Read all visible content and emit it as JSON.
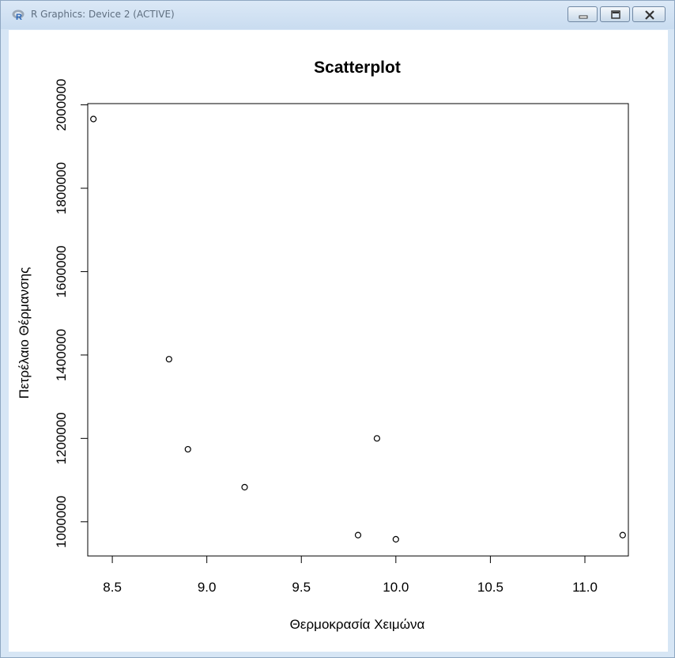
{
  "window": {
    "title": "R Graphics: Device 2 (ACTIVE)",
    "icon": "r-logo-icon",
    "controls": [
      "minimize-icon",
      "maximize-icon",
      "close-icon"
    ]
  },
  "colors": {
    "frame": "#d7e6f5",
    "plot_background": "#ffffff",
    "points": "#000000"
  },
  "chart_data": {
    "type": "scatter",
    "title": "Scatterplot",
    "xlabel": "Θερμοκρασία Χειμώνα",
    "ylabel": "Πετρέλαιο Θέρμανσης",
    "xlim": [
      8.37,
      11.23
    ],
    "ylim": [
      918000,
      2003000
    ],
    "x_ticks": [
      8.5,
      9.0,
      9.5,
      10.0,
      10.5,
      11.0
    ],
    "x_tick_labels": [
      "8.5",
      "9.0",
      "9.5",
      "10.0",
      "10.5",
      "11.0"
    ],
    "y_ticks": [
      1000000,
      1200000,
      1400000,
      1600000,
      1800000,
      2000000
    ],
    "y_tick_labels": [
      "1000000",
      "1200000",
      "1400000",
      "1600000",
      "1800000",
      "2000000"
    ],
    "grid": false,
    "legend": "none",
    "marker": "open-circle",
    "points": [
      {
        "x": 8.4,
        "y": 1966000
      },
      {
        "x": 8.8,
        "y": 1390000
      },
      {
        "x": 8.9,
        "y": 1174000
      },
      {
        "x": 9.2,
        "y": 1083000
      },
      {
        "x": 9.8,
        "y": 968000
      },
      {
        "x": 9.9,
        "y": 1200000
      },
      {
        "x": 10.0,
        "y": 958000
      },
      {
        "x": 11.2,
        "y": 968000
      }
    ]
  }
}
